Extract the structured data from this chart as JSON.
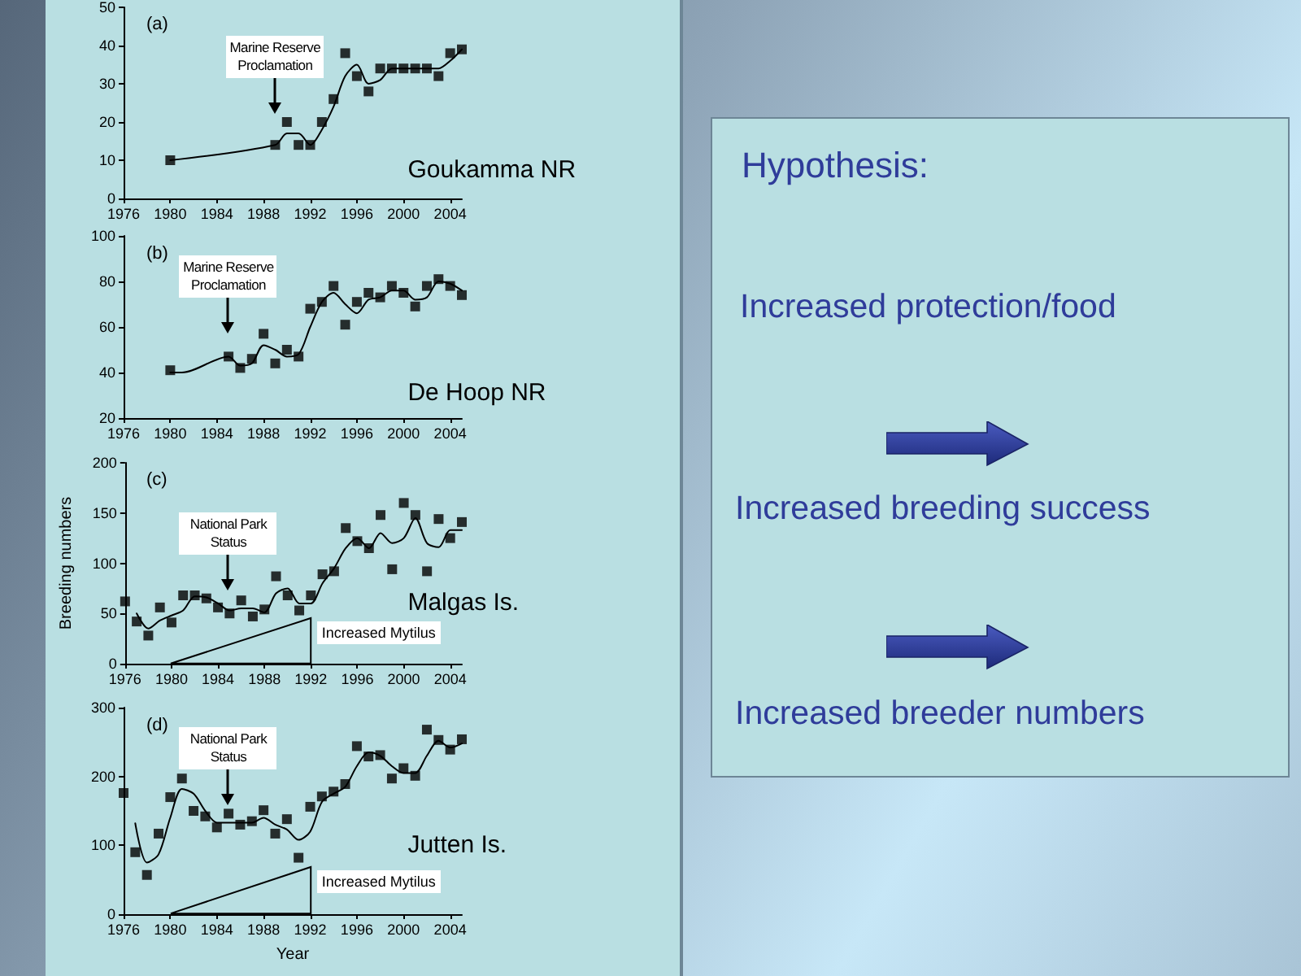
{
  "chart_data": [
    {
      "type": "scatter",
      "xlim": [
        1976,
        2005
      ],
      "xticks": [
        1976,
        1980,
        1984,
        1988,
        1992,
        1996,
        2000,
        2004
      ],
      "ylim": [
        0,
        50
      ],
      "yticks": [
        0,
        10,
        20,
        30,
        40,
        50
      ],
      "annotations": [
        "(a)",
        "Marine Reserve Proclamation",
        "Goukamma NR"
      ],
      "series": [
        {
          "type": "scatter",
          "marker": "square",
          "color": "#000000",
          "x": [
            1980,
            1989,
            1990,
            1991,
            1992,
            1993,
            1994,
            1995,
            1996,
            1997,
            1998,
            1999,
            2000,
            2001,
            2002,
            2003,
            2004,
            2005
          ],
          "values": [
            10,
            14,
            20,
            14,
            14,
            20,
            26,
            38,
            32,
            28,
            34,
            34,
            34,
            34,
            34,
            32,
            38,
            39
          ]
        },
        {
          "type": "line",
          "marker": "none",
          "line_style": "solid",
          "color": "#000000",
          "x": [
            1980,
            1989,
            1990,
            1991,
            1992,
            1993,
            1994,
            1995,
            1996,
            1997,
            1998,
            1999,
            2000,
            2001,
            2002,
            2003,
            2004,
            2005
          ],
          "values": [
            10,
            14,
            17,
            17,
            14,
            18,
            24,
            32,
            35,
            30,
            31,
            34,
            34,
            34,
            34,
            34,
            36,
            39
          ]
        }
      ]
    },
    {
      "type": "scatter",
      "xlim": [
        1976,
        2005
      ],
      "xticks": [
        1976,
        1980,
        1984,
        1988,
        1992,
        1996,
        2000,
        2004
      ],
      "ylim": [
        20,
        100
      ],
      "yticks": [
        20,
        40,
        60,
        80,
        100
      ],
      "annotations": [
        "(b)",
        "Marine Reserve Proclamation",
        "De Hoop NR"
      ],
      "series": [
        {
          "type": "scatter",
          "marker": "square",
          "color": "#000000",
          "x": [
            1980,
            1985,
            1986,
            1987,
            1988,
            1989,
            1990,
            1991,
            1992,
            1993,
            1994,
            1995,
            1996,
            1997,
            1998,
            1999,
            2000,
            2001,
            2002,
            2003,
            2004,
            2005
          ],
          "values": [
            41,
            47,
            42,
            46,
            57,
            44,
            50,
            47,
            68,
            71,
            78,
            61,
            71,
            75,
            73,
            78,
            75,
            69,
            78,
            81,
            78,
            74
          ]
        },
        {
          "type": "line",
          "marker": "none",
          "line_style": "solid",
          "color": "#000000",
          "x": [
            1980,
            1981,
            1985,
            1986,
            1987,
            1988,
            1989,
            1990,
            1991,
            1992,
            1993,
            1994,
            1995,
            1996,
            1997,
            1998,
            1999,
            2000,
            2001,
            2002,
            2003,
            2004,
            2005
          ],
          "values": [
            40,
            40,
            47,
            43,
            44,
            52,
            50,
            47,
            48,
            60,
            71,
            75,
            70,
            66,
            72,
            73,
            76,
            76,
            72,
            73,
            80,
            79,
            76
          ]
        }
      ]
    },
    {
      "type": "scatter",
      "xlim": [
        1976,
        2005
      ],
      "xticks": [
        1976,
        1980,
        1984,
        1988,
        1992,
        1996,
        2000,
        2004
      ],
      "ylim": [
        0,
        200
      ],
      "yticks": [
        0,
        50,
        100,
        150,
        200
      ],
      "ylabel": "Breeding numbers",
      "annotations": [
        "(c)",
        "National Park Status",
        "Increased Mytilus",
        "Malgas Is."
      ],
      "series": [
        {
          "type": "scatter",
          "marker": "square",
          "color": "#000000",
          "x": [
            1976,
            1977,
            1978,
            1979,
            1980,
            1981,
            1982,
            1983,
            1984,
            1985,
            1986,
            1987,
            1988,
            1989,
            1990,
            1991,
            1992,
            1993,
            1994,
            1995,
            1996,
            1997,
            1998,
            1999,
            2000,
            2001,
            2002,
            2003,
            2004,
            2005
          ],
          "values": [
            62,
            42,
            28,
            56,
            41,
            68,
            68,
            65,
            56,
            50,
            63,
            47,
            54,
            87,
            68,
            53,
            68,
            89,
            92,
            135,
            122,
            115,
            148,
            94,
            160,
            148,
            92,
            144,
            125,
            141
          ]
        },
        {
          "type": "line",
          "marker": "none",
          "line_style": "solid",
          "color": "#000000",
          "x": [
            1977,
            1978,
            1979,
            1980,
            1981,
            1982,
            1983,
            1984,
            1985,
            1986,
            1987,
            1988,
            1989,
            1990,
            1991,
            1992,
            1993,
            1994,
            1995,
            1996,
            1997,
            1998,
            1999,
            2000,
            2001,
            2002,
            2003,
            2004,
            2005
          ],
          "values": [
            50,
            35,
            43,
            48,
            53,
            67,
            66,
            60,
            53,
            55,
            55,
            51,
            70,
            75,
            60,
            60,
            80,
            95,
            115,
            125,
            115,
            130,
            120,
            125,
            145,
            120,
            116,
            133,
            133
          ]
        }
      ]
    },
    {
      "type": "scatter",
      "xlim": [
        1976,
        2005
      ],
      "xticks": [
        1976,
        1980,
        1984,
        1988,
        1992,
        1996,
        2000,
        2004
      ],
      "ylim": [
        0,
        300
      ],
      "yticks": [
        0,
        100,
        200,
        300
      ],
      "xlabel": "Year",
      "annotations": [
        "(d)",
        "National Park Status",
        "Increased Mytilus",
        "Jutten Is."
      ],
      "series": [
        {
          "type": "scatter",
          "marker": "square",
          "color": "#000000",
          "x": [
            1976,
            1977,
            1978,
            1979,
            1980,
            1981,
            1982,
            1983,
            1984,
            1985,
            1986,
            1987,
            1988,
            1989,
            1990,
            1991,
            1992,
            1993,
            1994,
            1995,
            1996,
            1997,
            1998,
            1999,
            2000,
            2001,
            2002,
            2003,
            2004,
            2005
          ],
          "values": [
            176,
            90,
            57,
            117,
            170,
            197,
            150,
            142,
            126,
            146,
            130,
            135,
            151,
            117,
            138,
            82,
            156,
            171,
            178,
            189,
            244,
            229,
            231,
            197,
            212,
            201,
            268,
            253,
            239,
            254
          ]
        },
        {
          "type": "line",
          "marker": "none",
          "line_style": "solid",
          "color": "#000000",
          "x": [
            1977,
            1978,
            1979,
            1980,
            1981,
            1982,
            1983,
            1984,
            1985,
            1986,
            1987,
            1988,
            1989,
            1990,
            1991,
            1992,
            1993,
            1994,
            1995,
            1996,
            1997,
            1998,
            1999,
            2000,
            2001,
            2002,
            2003,
            2004,
            2005
          ],
          "values": [
            132,
            75,
            87,
            140,
            182,
            175,
            150,
            133,
            133,
            133,
            133,
            140,
            130,
            123,
            108,
            120,
            163,
            175,
            185,
            215,
            235,
            230,
            215,
            205,
            205,
            230,
            252,
            242,
            248
          ]
        }
      ]
    },
    {
      "type": "other",
      "annotations": [
        "Hypothesis:",
        "Increased protection/food",
        "Increased breeding success",
        "Increased breeder numbers"
      ]
    }
  ]
}
